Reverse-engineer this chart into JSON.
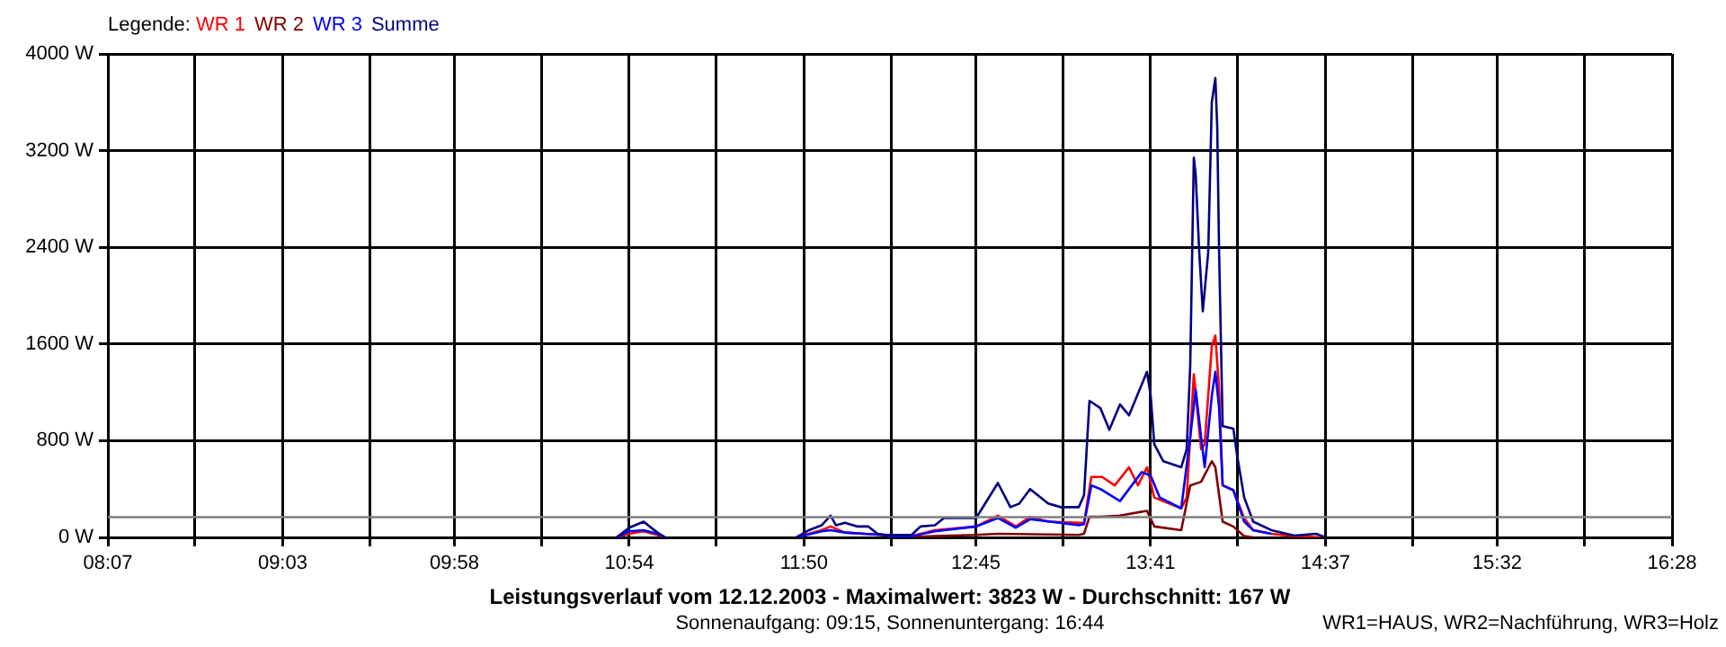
{
  "chart_data": {
    "type": "line",
    "title": "Leistungsverlauf vom 12.12.2003 - Maximalwert: 3823 W - Durchschnitt: 167 W",
    "subtitle": "Sonnenaufgang: 09:15, Sonnenuntergang: 16:44",
    "annotations": [
      "WR1=HAUS, WR2=Nachführung, WR3=Holz"
    ],
    "legend_title": "Legende:",
    "legend": "top left",
    "grid": true,
    "marker": "none",
    "line_style": "solid",
    "xlim": [
      8.117,
      16.467
    ],
    "xticks": [
      {
        "value": 8.117,
        "label": "08:07"
      },
      {
        "value": 8.581,
        "label": null
      },
      {
        "value": 9.05,
        "label": "09:03"
      },
      {
        "value": 9.514,
        "label": null
      },
      {
        "value": 9.967,
        "label": "09:58"
      },
      {
        "value": 10.431,
        "label": null
      },
      {
        "value": 10.9,
        "label": "10:54"
      },
      {
        "value": 11.364,
        "label": null
      },
      {
        "value": 11.833,
        "label": "11:50"
      },
      {
        "value": 12.297,
        "label": null
      },
      {
        "value": 12.75,
        "label": "12:45"
      },
      {
        "value": 13.214,
        "label": null
      },
      {
        "value": 13.683,
        "label": "13:41"
      },
      {
        "value": 14.147,
        "label": null
      },
      {
        "value": 14.617,
        "label": "14:37"
      },
      {
        "value": 15.081,
        "label": null
      },
      {
        "value": 15.533,
        "label": "15:32"
      },
      {
        "value": 15.997,
        "label": null
      },
      {
        "value": 16.467,
        "label": "16:28"
      }
    ],
    "ylim": [
      0,
      4000
    ],
    "yticks": [
      {
        "value": 0,
        "label": "0 W"
      },
      {
        "value": 800,
        "label": "800 W"
      },
      {
        "value": 1600,
        "label": "1600 W"
      },
      {
        "value": 2400,
        "label": "2400 W"
      },
      {
        "value": 3200,
        "label": "3200 W"
      },
      {
        "value": 4000,
        "label": "4000 W"
      }
    ],
    "ref_lines": [
      {
        "axis": "y",
        "value": 167,
        "label": null,
        "color": "#808080"
      }
    ],
    "series": [
      {
        "name": "WR 1",
        "color": "#ff0000",
        "x": [
          10.833,
          10.9,
          10.977,
          11.05,
          11.092,
          11.5,
          11.793,
          11.927,
          11.975,
          12.052,
          12.244,
          12.311,
          12.407,
          12.532,
          12.752,
          12.868,
          12.964,
          13.04,
          13.136,
          13.3,
          13.328,
          13.367,
          13.424,
          13.492,
          13.568,
          13.616,
          13.664,
          13.703,
          13.847,
          13.876,
          13.914,
          13.953,
          13.972,
          14.01,
          14.029,
          14.049,
          14.068,
          14.125,
          14.183,
          14.231,
          14.327,
          14.451,
          14.596
        ],
        "values": [
          0,
          30,
          50,
          20,
          0,
          null,
          0,
          60,
          90,
          40,
          20,
          10,
          10,
          60,
          90,
          180,
          90,
          170,
          130,
          120,
          120,
          500,
          500,
          430,
          580,
          430,
          580,
          330,
          240,
          330,
          1350,
          730,
          770,
          1580,
          1670,
          1220,
          430,
          390,
          160,
          60,
          30,
          10,
          0
        ]
      },
      {
        "name": "WR 2",
        "color": "#800000",
        "x": [
          12.34,
          12.532,
          12.752,
          12.868,
          13.3,
          13.328,
          13.357,
          13.415,
          13.52,
          13.664,
          13.703,
          13.847,
          13.895,
          13.953,
          14.01,
          14.029,
          14.068,
          14.125,
          14.183,
          14.231
        ],
        "values": [
          0,
          10,
          20,
          30,
          20,
          30,
          170,
          170,
          180,
          220,
          90,
          60,
          430,
          460,
          630,
          580,
          130,
          90,
          10,
          0
        ]
      },
      {
        "name": "WR 3",
        "color": "#0000ff",
        "x": [
          10.833,
          10.9,
          10.977,
          11.05,
          11.092,
          11.5,
          11.793,
          11.927,
          11.975,
          12.052,
          12.244,
          12.311,
          12.407,
          12.532,
          12.752,
          12.868,
          12.964,
          13.04,
          13.204,
          13.3,
          13.328,
          13.367,
          13.415,
          13.52,
          13.636,
          13.684,
          13.732,
          13.847,
          13.895,
          13.924,
          13.953,
          13.972,
          14.01,
          14.029,
          14.049,
          14.068,
          14.125,
          14.183,
          14.231,
          14.327
        ],
        "values": [
          0,
          50,
          60,
          30,
          0,
          null,
          0,
          50,
          60,
          40,
          20,
          10,
          10,
          50,
          90,
          160,
          80,
          150,
          120,
          100,
          110,
          430,
          400,
          300,
          540,
          510,
          330,
          240,
          830,
          1220,
          830,
          580,
          1170,
          1370,
          1070,
          430,
          390,
          130,
          60,
          30
        ]
      },
      {
        "name": "Summe",
        "color": "#000080",
        "x": [
          10.833,
          10.9,
          10.977,
          11.05,
          11.092,
          11.5,
          11.793,
          11.86,
          11.927,
          11.975,
          12.004,
          12.052,
          12.119,
          12.177,
          12.225,
          12.273,
          12.407,
          12.455,
          12.532,
          12.58,
          12.752,
          12.868,
          12.935,
          12.983,
          13.04,
          13.136,
          13.204,
          13.3,
          13.328,
          13.357,
          13.415,
          13.463,
          13.52,
          13.568,
          13.664,
          13.684,
          13.703,
          13.751,
          13.847,
          13.876,
          13.895,
          13.914,
          13.924,
          13.943,
          13.962,
          13.991,
          14.01,
          14.029,
          14.039,
          14.049,
          14.068,
          14.125,
          14.145,
          14.183,
          14.231,
          14.327,
          14.451,
          14.567,
          14.615
        ],
        "values": [
          0,
          80,
          130,
          40,
          0,
          null,
          0,
          60,
          100,
          180,
          100,
          120,
          90,
          90,
          30,
          20,
          20,
          90,
          100,
          160,
          160,
          450,
          250,
          280,
          400,
          280,
          250,
          250,
          350,
          1130,
          1070,
          890,
          1100,
          1010,
          1370,
          1170,
          770,
          630,
          580,
          730,
          1430,
          3140,
          3000,
          2360,
          1870,
          2360,
          3600,
          3800,
          3400,
          2360,
          920,
          900,
          680,
          330,
          130,
          60,
          15,
          30,
          0
        ]
      }
    ]
  }
}
